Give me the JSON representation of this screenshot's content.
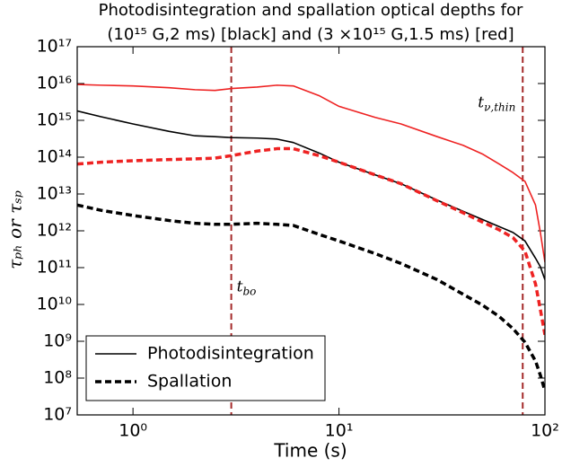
{
  "chart_data": {
    "type": "line",
    "title": [
      "Photodisintegration and spallation optical depths for",
      "(10¹⁵ G,2 ms) [black] and (3 ×10¹⁵ G,1.5 ms) [red]"
    ],
    "xlabel": "Time (s)",
    "ylabel": "τₚₕ or τₛₚ",
    "xscale": "log",
    "yscale": "log",
    "xlim": [
      0.536,
      100
    ],
    "ylim": [
      10000000.0,
      1e+17
    ],
    "xticks": [
      {
        "value": 1,
        "label": "10⁰"
      },
      {
        "value": 10,
        "label": "10¹"
      },
      {
        "value": 100,
        "label": "10²"
      }
    ],
    "yticks": [
      {
        "value": 10000000.0,
        "label": "10⁷"
      },
      {
        "value": 100000000.0,
        "label": "10⁸"
      },
      {
        "value": 1000000000.0,
        "label": "10⁹"
      },
      {
        "value": 10000000000.0,
        "label": "10¹⁰"
      },
      {
        "value": 100000000000.0,
        "label": "10¹¹"
      },
      {
        "value": 1000000000000.0,
        "label": "10¹²"
      },
      {
        "value": 10000000000000.0,
        "label": "10¹³"
      },
      {
        "value": 100000000000000.0,
        "label": "10¹⁴"
      },
      {
        "value": 1000000000000000.0,
        "label": "10¹⁵"
      },
      {
        "value": 1e+16,
        "label": "10¹⁶"
      },
      {
        "value": 1e+17,
        "label": "10¹⁷"
      }
    ],
    "x": [
      0.536,
      0.7,
      1,
      1.5,
      2,
      2.5,
      3,
      4,
      5,
      6,
      8,
      10,
      15,
      20,
      30,
      40,
      50,
      60,
      70,
      80,
      90,
      95,
      100
    ],
    "series": [
      {
        "color": "#ee2222",
        "linestyle": "solid",
        "values": [
          9400000000000000.0,
          9000000000000000.0,
          8600000000000000.0,
          7700000000000000.0,
          6800000000000000.0,
          6500000000000000.0,
          7300000000000000.0,
          8000000000000000.0,
          9000000000000000.0,
          8600000000000000.0,
          4700000000000000.0,
          2400000000000000.0,
          1200000000000000.0,
          800000000000000.0,
          360000000000000.0,
          210000000000000.0,
          120000000000000.0,
          65000000000000.0,
          38000000000000.0,
          22000000000000.0,
          5000000000000.0,
          900000000000.0,
          140000000000.0
        ]
      },
      {
        "color": "#000000",
        "linestyle": "solid",
        "values": [
          1800000000000000.0,
          1250000000000000.0,
          800000000000000.0,
          500000000000000.0,
          380000000000000.0,
          360000000000000.0,
          340000000000000.0,
          330000000000000.0,
          310000000000000.0,
          250000000000000.0,
          130000000000000.0,
          73000000000000.0,
          33000000000000.0,
          19000000000000.0,
          6800000000000.0,
          3400000000000.0,
          2000000000000.0,
          1300000000000.0,
          900000000000.0,
          530000000000.0,
          180000000000.0,
          106000000000.0,
          47000000000.0
        ]
      },
      {
        "color": "#ee2222",
        "linestyle": "dashed",
        "values": [
          65000000000000.0,
          73000000000000.0,
          80000000000000.0,
          86000000000000.0,
          90000000000000.0,
          94000000000000.0,
          110000000000000.0,
          146000000000000.0,
          170000000000000.0,
          170000000000000.0,
          110000000000000.0,
          73000000000000.0,
          33000000000000.0,
          19000000000000.0,
          6500000000000.0,
          3100000000000.0,
          1700000000000.0,
          1060000000000.0,
          650000000000.0,
          280000000000.0,
          36000000000.0,
          7300000000.0,
          1500000000.0
        ]
      },
      {
        "color": "#000000",
        "linestyle": "dashed",
        "values": [
          5000000000000.0,
          3600000000000.0,
          2600000000000.0,
          1900000000000.0,
          1600000000000.0,
          1500000000000.0,
          1500000000000.0,
          1600000000000.0,
          1500000000000.0,
          1400000000000.0,
          800000000000.0,
          530000000000.0,
          240000000000.0,
          130000000000.0,
          47000000000.0,
          19000000000.0,
          9400000000.0,
          4700000000.0,
          2200000000.0,
          940000000.0,
          290000000.0,
          120000000.0,
          45000000.0
        ]
      }
    ],
    "vlines": [
      {
        "x": 3,
        "color": "#a52a2a",
        "label": "t",
        "sub": "bo"
      },
      {
        "x": 78,
        "color": "#a52a2a",
        "label": "t",
        "sub": "ν,thin"
      }
    ],
    "legend": {
      "position": "lower left",
      "entries": [
        {
          "name": "Photodisintegration",
          "color": "#000000",
          "linestyle": "solid"
        },
        {
          "name": "Spallation",
          "color": "#000000",
          "linestyle": "dashed"
        }
      ]
    }
  }
}
